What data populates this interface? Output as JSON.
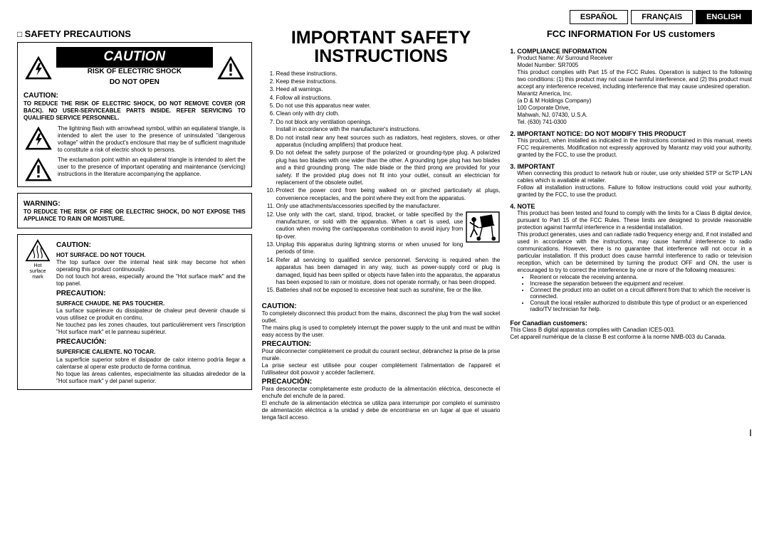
{
  "lang_tabs": {
    "es": "ESPAÑOL",
    "fr": "FRANÇAIS",
    "en": "ENGLISH"
  },
  "col1": {
    "title": "SAFETY PRECAUTIONS",
    "caution_banner": "CAUTION",
    "shock_line1": "RISK OF ELECTRIC SHOCK",
    "shock_line2": "DO NOT OPEN",
    "caution_h": "CAUTION:",
    "caution_body": "TO REDUCE THE RISK OF ELECTRIC SHOCK, DO NOT REMOVE COVER (OR BACK). NO USER-SERVICEABLE PARTS INSIDE. REFER SERVICING TO QUALIFIED SERVICE PERSONNEL.",
    "flash_body": "The lightning flash with arrowhead symbol, within an equilateral triangle, is intended to alert the user to the presence of uninsulated \"dangerous voltage\" within the product's enclosure that may be of sufficient magnitude to constitute a risk of electric shock to persons.",
    "excl_body": "The exclamation point within an equilateral triangle is intended to alert the user to the presence of important operating and maintenance (servicing) instructions in the literature accompanying the appliance.",
    "warning_h": "WARNING:",
    "warning_body": "TO REDUCE THE RISK OF FIRE OR ELECTRIC SHOCK, DO NOT EXPOSE THIS APPLIANCE TO RAIN OR MOISTURE.",
    "hot_label1": "Hot",
    "hot_label2": "surface",
    "hot_label3": "mark",
    "hot_caution_h": "CAUTION:",
    "hot_sub": "HOT SURFACE. DO NOT TOUCH.",
    "hot_body": "The top surface over the internal heat sink may become hot when operating this product continuously.\nDo not touch hot areas, especially around the \"Hot surface mark\" and the top panel.",
    "prec_h": "PRECAUTION:",
    "prec_sub": "SURFACE CHAUDE. NE PAS TOUCHER.",
    "prec_body": "La surface supérieure du dissipateur de chaleur peut devenir chaude si vous utilisez ce produit en continu.\nNe touchez pas les zones chaudes, tout particulièrement vers l'inscription \"Hot surface mark\" et le panneau supérieur.",
    "precau_h": "PRECAUCIÓN:",
    "precau_sub": "SUPERFICIE CALIENTE. NO TOCAR.",
    "precau_body": "La superficie superior sobre el disipador de calor interno podría llegar a calentarse al operar este producto de forma continua.\nNo toque las áreas calientes, especialmente las situadas alrededor de la \"Hot surface mark\" y del panel superior."
  },
  "col2": {
    "title": "IMPORTANT SAFETY INSTRUCTIONS",
    "items": [
      "Read these instructions.",
      "Keep these instructions.",
      "Heed all warnings.",
      "Follow all instructions.",
      "Do not use this apparatus near water.",
      "Clean only with dry cloth.",
      "Do not block any ventilation openings.\nInstall in accordance with the manufacturer's instructions.",
      "Do not install near any heat sources such as radiators, heat registers, stoves, or other apparatus (including amplifiers) that produce heat.",
      "Do not defeat the safety purpose of the polarized or grounding-type plug. A polarized plug has two blades with one wider than the other. A grounding type plug has two blades and a third grounding prong. The wide blade or the third prong are provided for your safety. If the provided plug does not fit into your outlet, consult an electrician for replacement of the obsolete outlet.",
      "Protect the power cord from being walked on or pinched particularly at plugs, convenience receptacles, and the point where they exit from the apparatus.",
      "Only use attachments/accessories specified by the manufacturer.",
      "Use only with the cart, stand, tripod, bracket, or table specified by the manufacturer, or sold with the apparatus. When a cart is used, use caution when moving the cart/apparatus combination to avoid injury from tip-over.",
      "Unplug this apparatus during lightning storms or when unused for long periods of time.",
      "Refer all servicing to qualified service personnel. Servicing is required when the apparatus has been damaged in any way, such as power-supply cord or plug is damaged, liquid has been spilled or objects have fallen into the apparatus, the apparatus has been exposed to rain or moisture, does not operate normally, or has been dropped.",
      "Batteries shall not be exposed to excessive heat such as sunshine, fire or the like."
    ],
    "caution_h": "CAUTION:",
    "caution_body": "To completely disconnect this product from the mains, disconnect the plug from the wall socket outlet.\nThe mains plug is used to completely interrupt the power supply to the unit and must be within easy access by the user.",
    "prec_h": "PRECAUTION:",
    "prec_body": "Pour déconnecter complètement ce produit du courant secteur, débranchez la prise de la prise murale.\nLa prise secteur est utilisée pour couper complètement l'alimentation de l'appareil et l'utilisateur doit pouvoir y accéder facilement.",
    "precau_h": "PRECAUCIÓN:",
    "precau_body": "Para desconectar completamente este producto de la alimentación eléctrica, desconecte el enchufe del enchufe de la pared.\nEl enchufe de la alimentación eléctrica se utiliza para interrumpir por completo el suministro de alimentación eléctrica a la unidad y debe de encontrarse en un lugar al que el usuario tenga fácil acceso."
  },
  "col3": {
    "title": "FCC INFORMATION For US customers",
    "comp_h": "1. COMPLIANCE INFORMATION",
    "comp_prod": "Product Name: AV Surround Receiver",
    "comp_model": "Model Number: SR7005",
    "comp_body": "This product complies with Part 15 of the FCC Rules. Operation is subject to the following two conditions: (1) this product may not cause harmful interference, and (2) this product must accept any interference received, including interference that may cause undesired operation.",
    "comp_co": "Marantz America, Inc.\n(a D & M Holdings Company)\n100 Corporate Drive,\nMahwah, NJ, 07430, U.S.A.\nTel. (630) 741-0300",
    "notice_h": "2. IMPORTANT NOTICE: DO NOT MODIFY THIS PRODUCT",
    "notice_body": "This product, when installed as indicated in the instructions contained in this manual, meets FCC requirements. Modification not expressly approved by Marantz may void your authority, granted by the FCC, to use the product.",
    "important_h": "3. IMPORTANT",
    "important_body": "When connecting this product to network hub or router, use only shielded STP or ScTP LAN cables which is available at retailer.\nFollow all installation instructions. Failure to follow instructions could void your authority, granted by the FCC, to use the product.",
    "note_h": "4. NOTE",
    "note_body1": "This product has been tested and found to comply with the limits for a Class B digital device, pursuant to Part 15 of the FCC Rules. These limits are designed to provide reasonable protection against harmful interference in a residential installation.",
    "note_body2": "This product generates, uses and can radiate radio frequency energy and, if not installed and used in accordance with the instructions, may cause harmful interference to radio communications. However, there is no guarantee that interference will not occur in a particular installation. If this product does cause harmful interference to radio or television reception, which can be determined by turning the product OFF and ON, the user is encouraged to try to correct the interference by one or more of the following measures:",
    "bullets": [
      "Reorient or relocate the receiving antenna.",
      "Increase the separation between the equipment and receiver.",
      "Connect the product into an outlet on a circuit different from that to which the receiver is connected.",
      "Consult the local retailer authorized to distribute this type of product or an experienced radio/TV technician for help."
    ],
    "canada_h": "For Canadian customers:",
    "canada_body": "This Class B digital apparatus complies with Canadian ICES-003.\nCet appareil numérique de la classe B est conforme à la norme NMB-003 du Canada."
  },
  "page_num": "I",
  "colors": {
    "black": "#000000",
    "white": "#ffffff"
  }
}
